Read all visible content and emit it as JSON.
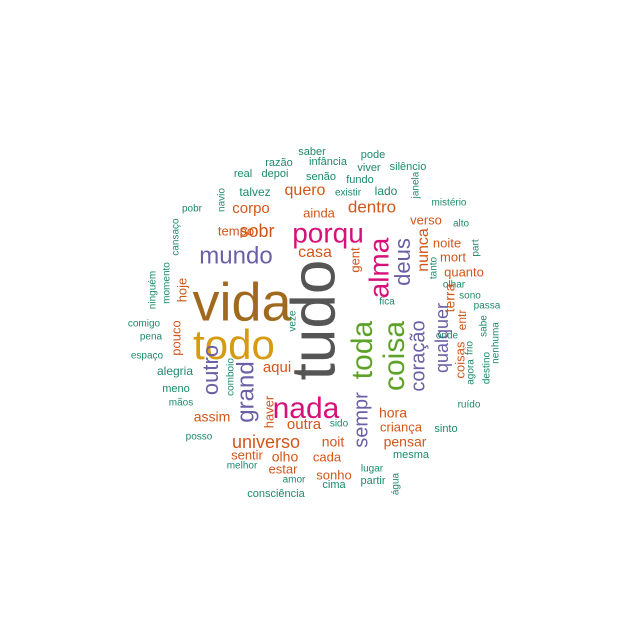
{
  "palette": {
    "gray": "#555555",
    "brown": "#a06a1e",
    "gold": "#d69b10",
    "magenta": "#d6127a",
    "purple": "#6b5fa6",
    "green": "#5ea22a",
    "orange": "#d2561a",
    "teal": "#1c8a6c"
  },
  "words": [
    {
      "text": "tudo",
      "color": "gray"
    },
    {
      "text": "vida",
      "color": "brown"
    },
    {
      "text": "todo",
      "color": "gold"
    },
    {
      "text": "nada",
      "color": "magenta"
    },
    {
      "text": "porqu",
      "color": "magenta"
    },
    {
      "text": "alma",
      "color": "magenta"
    },
    {
      "text": "toda",
      "color": "green"
    },
    {
      "text": "coisa",
      "color": "green"
    },
    {
      "text": "mundo",
      "color": "purple"
    },
    {
      "text": "grand",
      "color": "purple"
    },
    {
      "text": "deus",
      "color": "purple"
    },
    {
      "text": "coração",
      "color": "purple"
    },
    {
      "text": "outro",
      "color": "purple"
    },
    {
      "text": "sempr",
      "color": "purple"
    },
    {
      "text": "qualquer",
      "color": "purple"
    },
    {
      "text": "universo",
      "color": "orange"
    },
    {
      "text": "sobr",
      "color": "orange"
    },
    {
      "text": "dentro",
      "color": "orange"
    },
    {
      "text": "quero",
      "color": "orange"
    },
    {
      "text": "corpo",
      "color": "orange"
    },
    {
      "text": "casa",
      "color": "orange"
    },
    {
      "text": "nunca",
      "color": "orange"
    },
    {
      "text": "outra",
      "color": "orange"
    },
    {
      "text": "hora",
      "color": "orange"
    },
    {
      "text": "pensar",
      "color": "orange"
    },
    {
      "text": "aqui",
      "color": "orange"
    },
    {
      "text": "assim",
      "color": "orange"
    },
    {
      "text": "noit",
      "color": "orange"
    },
    {
      "text": "olho",
      "color": "orange"
    },
    {
      "text": "cada",
      "color": "orange"
    },
    {
      "text": "sentir",
      "color": "orange"
    },
    {
      "text": "estar",
      "color": "orange"
    },
    {
      "text": "sonho",
      "color": "orange"
    },
    {
      "text": "criança",
      "color": "orange"
    },
    {
      "text": "noite",
      "color": "orange"
    },
    {
      "text": "mort",
      "color": "orange"
    },
    {
      "text": "quanto",
      "color": "orange"
    },
    {
      "text": "terra",
      "color": "orange"
    },
    {
      "text": "tempo",
      "color": "orange"
    },
    {
      "text": "ainda",
      "color": "orange"
    },
    {
      "text": "gent",
      "color": "orange"
    },
    {
      "text": "verso",
      "color": "orange"
    },
    {
      "text": "haver",
      "color": "orange"
    },
    {
      "text": "pouco",
      "color": "orange"
    },
    {
      "text": "hoje",
      "color": "orange"
    },
    {
      "text": "coisas",
      "color": "orange"
    },
    {
      "text": "entr",
      "color": "orange"
    },
    {
      "text": "lado",
      "color": "teal"
    },
    {
      "text": "talvez",
      "color": "teal"
    },
    {
      "text": "saber",
      "color": "teal"
    },
    {
      "text": "pode",
      "color": "teal"
    },
    {
      "text": "razão",
      "color": "teal"
    },
    {
      "text": "infância",
      "color": "teal"
    },
    {
      "text": "viver",
      "color": "teal"
    },
    {
      "text": "silêncio",
      "color": "teal"
    },
    {
      "text": "real",
      "color": "teal"
    },
    {
      "text": "depoi",
      "color": "teal"
    },
    {
      "text": "senão",
      "color": "teal"
    },
    {
      "text": "fundo",
      "color": "teal"
    },
    {
      "text": "existir",
      "color": "teal"
    },
    {
      "text": "janela",
      "color": "teal"
    },
    {
      "text": "navio",
      "color": "teal"
    },
    {
      "text": "pobr",
      "color": "teal"
    },
    {
      "text": "mistério",
      "color": "teal"
    },
    {
      "text": "cansaço",
      "color": "teal"
    },
    {
      "text": "alto",
      "color": "teal"
    },
    {
      "text": "ninguém",
      "color": "teal"
    },
    {
      "text": "momento",
      "color": "teal"
    },
    {
      "text": "pena",
      "color": "teal"
    },
    {
      "text": "tanto",
      "color": "teal"
    },
    {
      "text": "part",
      "color": "teal"
    },
    {
      "text": "olhar",
      "color": "teal"
    },
    {
      "text": "sono",
      "color": "teal"
    },
    {
      "text": "fica",
      "color": "teal"
    },
    {
      "text": "passa",
      "color": "teal"
    },
    {
      "text": "comigo",
      "color": "teal"
    },
    {
      "text": "veze",
      "color": "teal"
    },
    {
      "text": "sabe",
      "color": "teal"
    },
    {
      "text": "onde",
      "color": "teal"
    },
    {
      "text": "frio",
      "color": "teal"
    },
    {
      "text": "nenhuma",
      "color": "teal"
    },
    {
      "text": "espaço",
      "color": "teal"
    },
    {
      "text": "agora",
      "color": "teal"
    },
    {
      "text": "destino",
      "color": "teal"
    },
    {
      "text": "alegria",
      "color": "teal"
    },
    {
      "text": "comboio",
      "color": "teal"
    },
    {
      "text": "meno",
      "color": "teal"
    },
    {
      "text": "mãos",
      "color": "teal"
    },
    {
      "text": "ruído",
      "color": "teal"
    },
    {
      "text": "sido",
      "color": "teal"
    },
    {
      "text": "sinto",
      "color": "teal"
    },
    {
      "text": "posso",
      "color": "teal"
    },
    {
      "text": "mesma",
      "color": "teal"
    },
    {
      "text": "melhor",
      "color": "teal"
    },
    {
      "text": "lugar",
      "color": "teal"
    },
    {
      "text": "amor",
      "color": "teal"
    },
    {
      "text": "partir",
      "color": "teal"
    },
    {
      "text": "cima",
      "color": "teal"
    },
    {
      "text": "água",
      "color": "teal"
    },
    {
      "text": "consciência",
      "color": "teal"
    }
  ]
}
